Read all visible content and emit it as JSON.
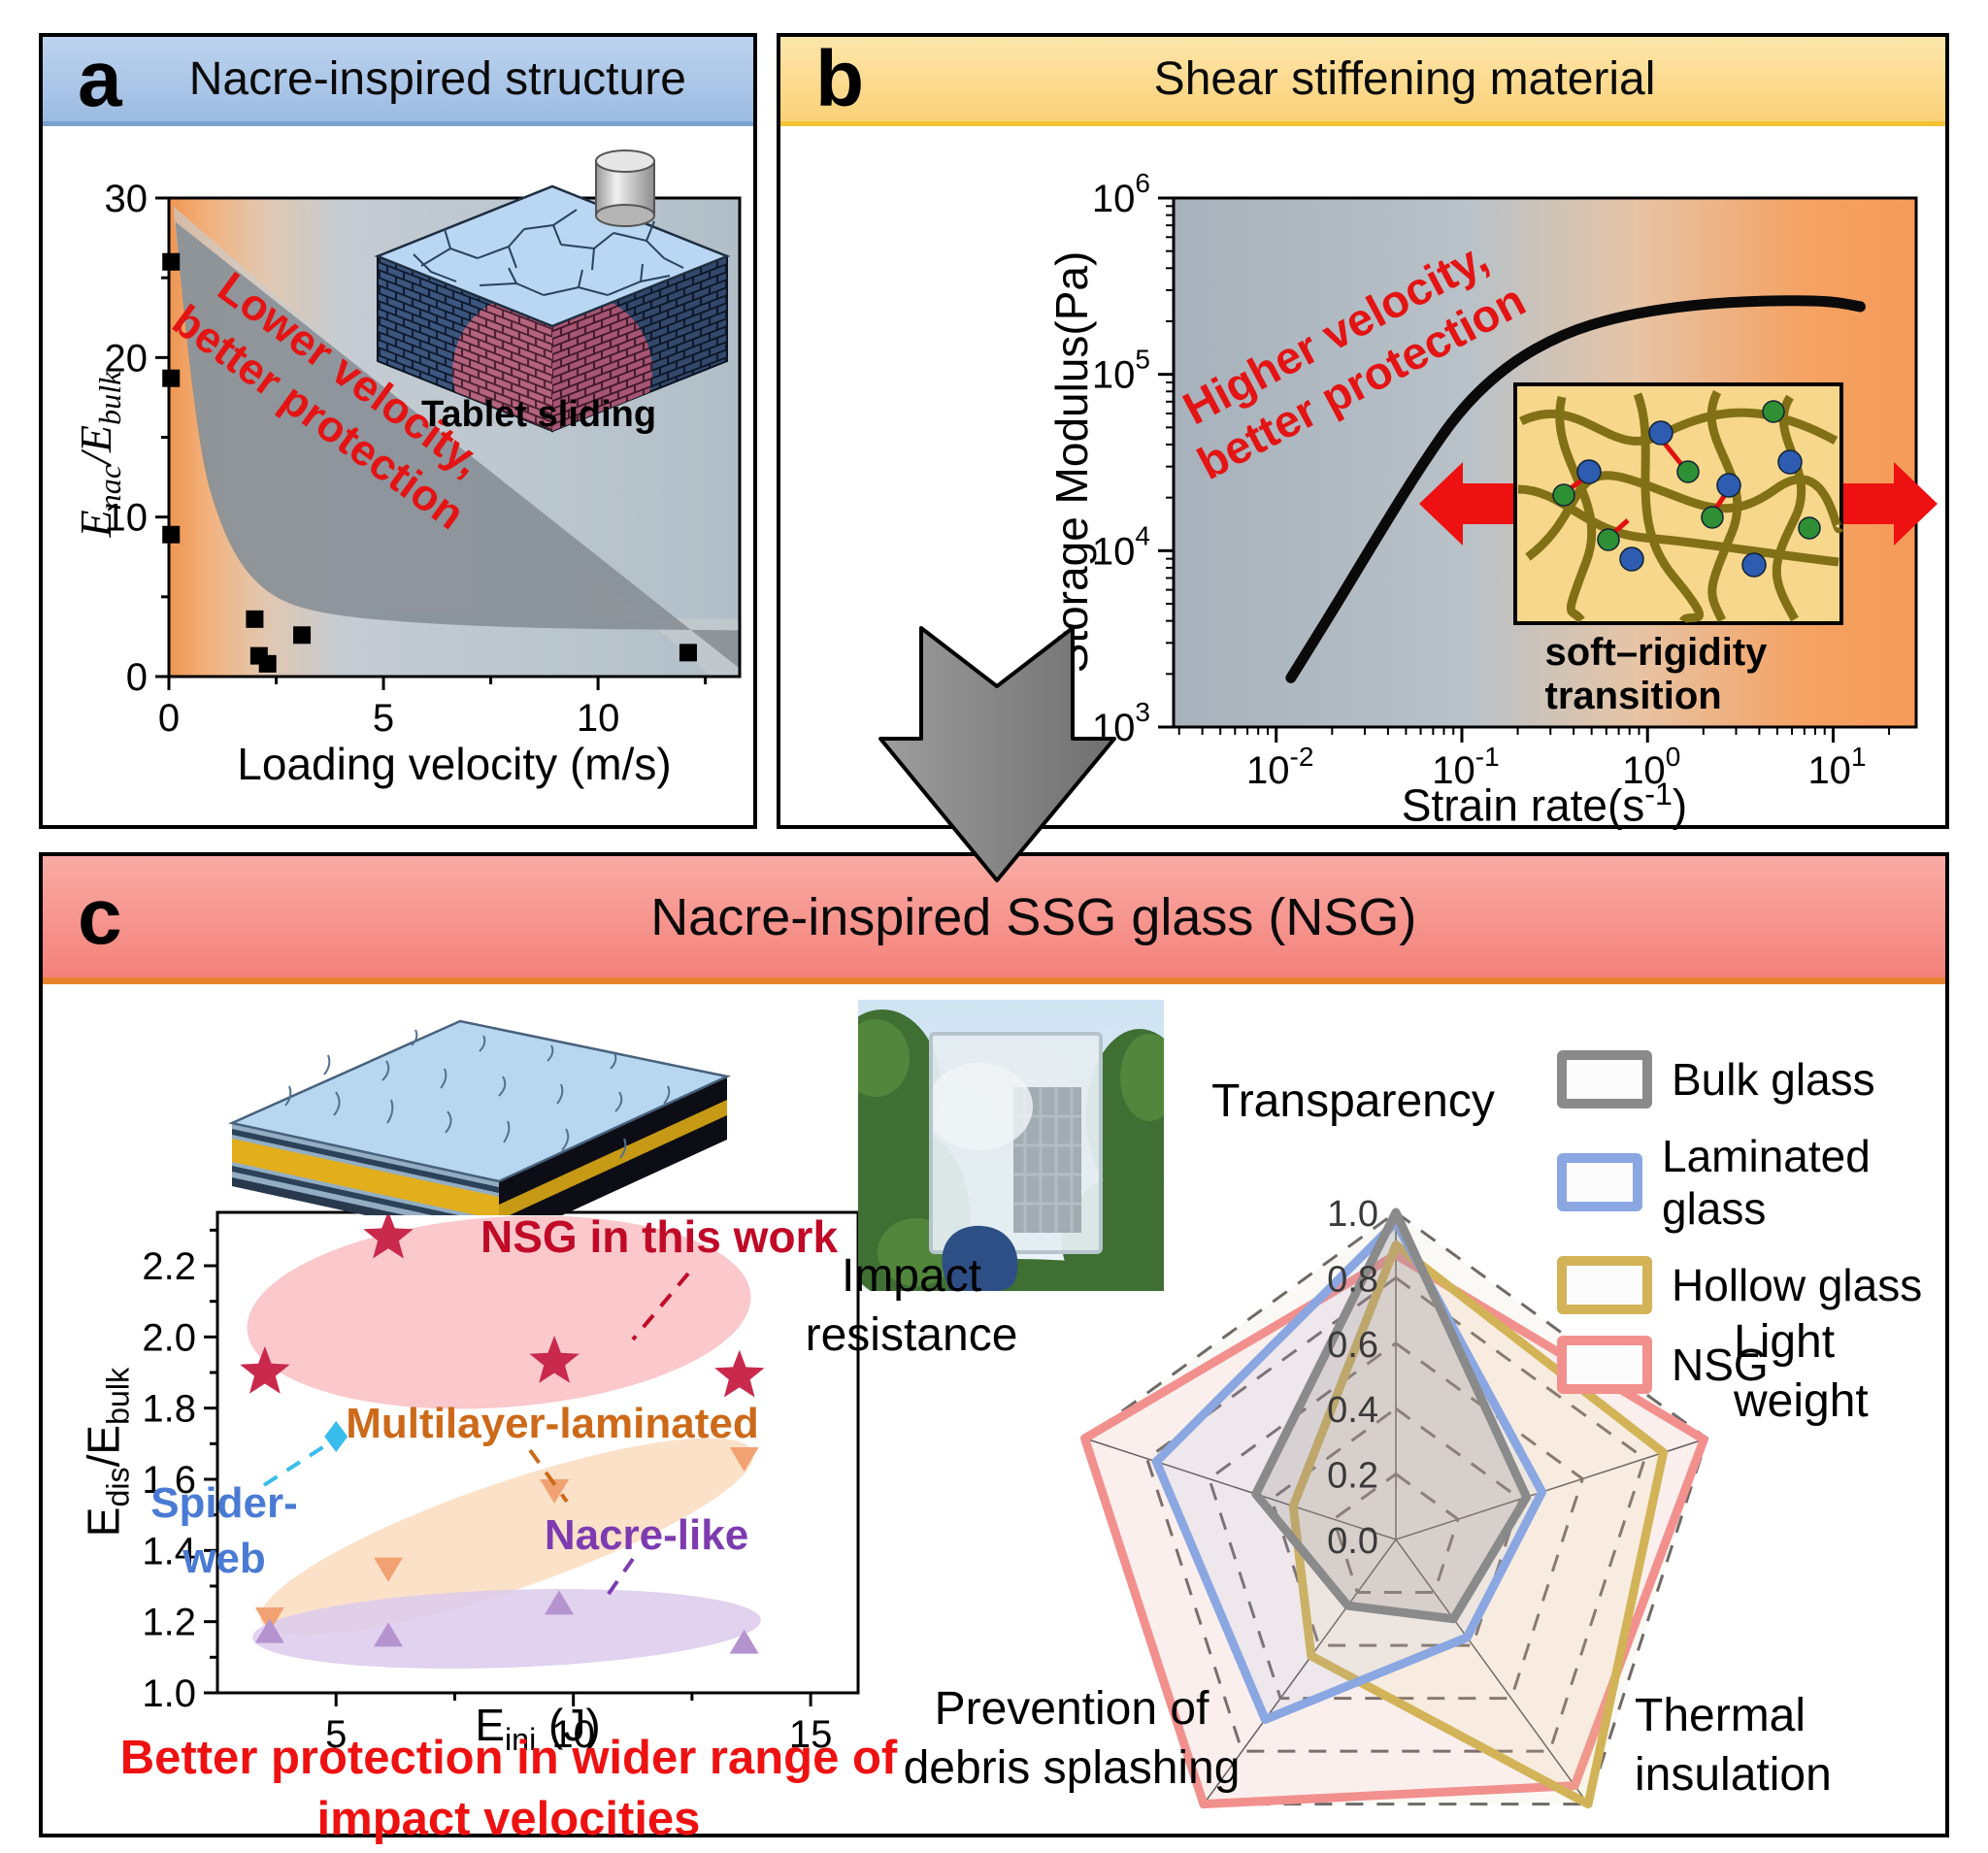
{
  "colors": {
    "panel_a_header": "#aac6e8",
    "panel_a_header_border": "#7aa0cc",
    "panel_b_header": "#fbd47e",
    "panel_b_header_border": "#f3c235",
    "panel_c_header": "#f4877f",
    "panel_c_header_border": "#e8832f",
    "annotation_red": "#e41414",
    "note_red": "#ee1111",
    "nsg_label_red": "#c00a28",
    "multilayer_label_orange": "#cc6a1a",
    "nacre_label_purple": "#7d3bb0",
    "spider_label_blue": "#4a7bd4",
    "arrow_gray": "#8b8b8b"
  },
  "panel_a": {
    "badge": "a",
    "title": "Nacre-inspired structure",
    "annotation_line1": "Lower velocity,",
    "annotation_line2": "better protection",
    "inset_caption": "Tablet sliding",
    "xlabel": "Loading velocity (m/s)",
    "ylabel": {
      "e1": "E",
      "s1": "nac",
      "e2": "/E",
      "s2": "bulk"
    }
  },
  "panel_b": {
    "badge": "b",
    "title": "Shear stiffening material",
    "annotation_line1": "Higher velocity,",
    "annotation_line2": "better protection",
    "inset_caption": "soft–rigidity transition",
    "ylabel": "Storage Modulus(Pa)",
    "xlabel": {
      "pre": "Strain rate(s",
      "sup": "-1",
      "post": ")"
    }
  },
  "panel_c": {
    "badge": "c",
    "title": "Nacre-inspired SSG glass (NSG)",
    "note_line1": "Better protection in wider range of",
    "note_line2": "impact velocities",
    "xlabel": {
      "e": "E",
      "sub": "ini",
      "post": " (J)"
    },
    "ylabel": {
      "e1": "E",
      "s1": "dis",
      "e2": "/E",
      "s2": "bulk"
    },
    "scatter_annotations": {
      "nsg": "NSG in this work",
      "multilayer": "Multilayer-laminated",
      "spider_line1": "Spider-",
      "spider_line2": "web",
      "nacre": "Nacre-like"
    }
  },
  "chart_data": [
    {
      "id": "panel_a_scatter",
      "type": "scatter",
      "title": "Nacre-inspired structure",
      "xlabel": "Loading velocity (m/s)",
      "ylabel": "E_nac/E_bulk",
      "xlim": [
        0,
        13.3
      ],
      "ylim": [
        0,
        30
      ],
      "xticks": [
        0,
        5,
        10
      ],
      "xticks_minor": [
        2.5,
        7.5,
        12.5
      ],
      "yticks": [
        0,
        10,
        20,
        30
      ],
      "yticks_minor": [
        5,
        15,
        25
      ],
      "marker": "square",
      "color": "#000000",
      "points": [
        [
          0.05,
          26
        ],
        [
          0.05,
          18.7
        ],
        [
          0.05,
          8.9
        ],
        [
          2.0,
          3.6
        ],
        [
          2.1,
          1.3
        ],
        [
          2.3,
          0.8
        ],
        [
          3.1,
          2.6
        ],
        [
          12.1,
          1.5
        ]
      ]
    },
    {
      "id": "panel_b_line",
      "type": "line",
      "title": "Shear stiffening material",
      "xlabel": "Strain rate(s^-1)",
      "ylabel": "Storage Modulus(Pa)",
      "xscale": "log",
      "yscale": "log",
      "xlim": [
        0.0028,
        28
      ],
      "ylim": [
        1000,
        1000000
      ],
      "xticks_exp": [
        -2,
        -1,
        0,
        1
      ],
      "yticks_exp": [
        3,
        4,
        5,
        6
      ],
      "color": "#0a0a0a",
      "points": [
        [
          0.012,
          1900
        ],
        [
          0.02,
          4500
        ],
        [
          0.035,
          12000
        ],
        [
          0.06,
          30000
        ],
        [
          0.1,
          65000
        ],
        [
          0.18,
          115000
        ],
        [
          0.35,
          170000
        ],
        [
          0.7,
          213000
        ],
        [
          1.5,
          243000
        ],
        [
          3,
          258000
        ],
        [
          6,
          263000
        ],
        [
          10,
          259000
        ],
        [
          14,
          242000
        ]
      ]
    },
    {
      "id": "panel_c_scatter",
      "type": "scatter",
      "title": "Nacre-inspired SSG glass (NSG)",
      "xlabel": "E_ini (J)",
      "ylabel": "E_dis/E_bulk",
      "xlim": [
        2.5,
        16
      ],
      "ylim": [
        1.0,
        2.35
      ],
      "xticks": [
        5,
        10,
        15
      ],
      "xticks_minor": [
        7.5,
        12.5
      ],
      "yticks": [
        1.0,
        1.2,
        1.4,
        1.6,
        1.8,
        2.0,
        2.2
      ],
      "yticks_minor": [
        1.1,
        1.3,
        1.5,
        1.7,
        1.9,
        2.1,
        2.3
      ],
      "series": [
        {
          "name": "NSG in this work",
          "marker": "star",
          "color": "#c9294c",
          "blob_color": "#f9b6ba",
          "points": [
            [
              3.5,
              1.9
            ],
            [
              6.1,
              2.28
            ],
            [
              9.6,
              1.93
            ],
            [
              13.5,
              1.89
            ]
          ]
        },
        {
          "name": "Spider-web",
          "marker": "diamond",
          "color": "#38bdec",
          "points": [
            [
              5.0,
              1.72
            ]
          ]
        },
        {
          "name": "Multilayer-laminated",
          "marker": "triangle-down",
          "color": "#f2a272",
          "blob_color": "#fbdcc0",
          "points": [
            [
              3.6,
              1.21
            ],
            [
              6.1,
              1.35
            ],
            [
              9.6,
              1.57
            ],
            [
              13.6,
              1.66
            ]
          ]
        },
        {
          "name": "Nacre-like",
          "marker": "triangle-up",
          "color": "#b593cf",
          "blob_color": "#dccaec",
          "points": [
            [
              3.6,
              1.17
            ],
            [
              6.1,
              1.16
            ],
            [
              9.7,
              1.25
            ],
            [
              13.6,
              1.14
            ]
          ]
        }
      ]
    },
    {
      "id": "panel_c_radar",
      "type": "radar",
      "rticks": [
        0.0,
        0.2,
        0.4,
        0.6,
        0.8,
        1.0
      ],
      "axes": [
        "Transparency",
        "Light weight",
        "Thermal insulation",
        "Prevention of debris splashing",
        "Impact resistance"
      ],
      "axis_label_lines": [
        [
          "Transparency"
        ],
        [
          "Light",
          "weight"
        ],
        [
          "Thermal",
          "insulation"
        ],
        [
          "Prevention of",
          "debris splashing"
        ],
        [
          "Impact",
          "resistance"
        ]
      ],
      "series": [
        {
          "name": "Bulk glass",
          "color": "#8a8a8a",
          "values": [
            1.0,
            0.42,
            0.3,
            0.25,
            0.45
          ]
        },
        {
          "name": "Laminated glass",
          "color": "#8aa7e2",
          "values": [
            0.97,
            0.47,
            0.37,
            0.68,
            0.77
          ]
        },
        {
          "name": "Hollow glass",
          "color": "#d3b358",
          "values": [
            0.9,
            0.86,
            1.0,
            0.44,
            0.33
          ]
        },
        {
          "name": "NSG",
          "color": "#f2908e",
          "values": [
            0.87,
            0.99,
            0.93,
            1.0,
            1.0
          ]
        }
      ]
    }
  ]
}
